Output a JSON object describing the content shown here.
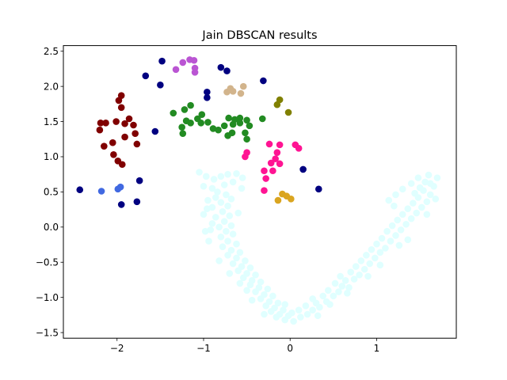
{
  "chart_data": {
    "type": "scatter",
    "title": "Jain DBSCAN results",
    "xlabel": "",
    "ylabel": "",
    "xlim": [
      -2.62,
      1.92
    ],
    "ylim": [
      -1.58,
      2.58
    ],
    "xticks": [
      -2,
      -1,
      0,
      1
    ],
    "yticks": [
      -1.5,
      -1.0,
      -0.5,
      0.0,
      0.5,
      1.0,
      1.5,
      2.0,
      2.5
    ],
    "xtick_labels": [
      "−2",
      "−1",
      "0",
      "1"
    ],
    "ytick_labels": [
      "−1.5",
      "−1.0",
      "−0.5",
      "0.0",
      "0.5",
      "1.0",
      "1.5",
      "2.0",
      "2.5"
    ],
    "grid": false,
    "legend": "none",
    "series": [
      {
        "color": "#e0ffff",
        "points": [
          [
            -1.05,
            0.78
          ],
          [
            -0.97,
            0.72
          ],
          [
            -0.88,
            0.68
          ],
          [
            -0.8,
            0.72
          ],
          [
            -0.72,
            0.75
          ],
          [
            -0.62,
            0.76
          ],
          [
            -0.55,
            0.7
          ],
          [
            -0.66,
            0.64
          ],
          [
            -0.76,
            0.6
          ],
          [
            -0.9,
            0.55
          ],
          [
            -1.0,
            0.58
          ],
          [
            -0.84,
            0.5
          ],
          [
            -0.74,
            0.46
          ],
          [
            -0.86,
            0.42
          ],
          [
            -0.68,
            0.4
          ],
          [
            -0.95,
            0.38
          ],
          [
            -0.8,
            0.35
          ],
          [
            -0.72,
            0.3
          ],
          [
            -0.9,
            0.28
          ],
          [
            -0.78,
            0.22
          ],
          [
            -0.7,
            0.16
          ],
          [
            -0.86,
            0.14
          ],
          [
            -0.76,
            0.08
          ],
          [
            -0.68,
            0.02
          ],
          [
            -0.82,
            0.0
          ],
          [
            -0.92,
            -0.04
          ],
          [
            -0.74,
            -0.06
          ],
          [
            -0.66,
            -0.1
          ],
          [
            -0.8,
            -0.14
          ],
          [
            -0.9,
            0.05
          ],
          [
            -0.72,
            -0.2
          ],
          [
            -0.62,
            -0.24
          ],
          [
            -0.78,
            -0.28
          ],
          [
            -0.68,
            -0.33
          ],
          [
            -0.58,
            -0.36
          ],
          [
            -0.72,
            -0.4
          ],
          [
            -0.62,
            -0.44
          ],
          [
            -0.52,
            -0.48
          ],
          [
            -0.66,
            -0.52
          ],
          [
            -0.56,
            -0.56
          ],
          [
            -0.46,
            -0.58
          ],
          [
            -0.6,
            -0.62
          ],
          [
            -0.5,
            -0.66
          ],
          [
            -0.4,
            -0.68
          ],
          [
            -0.54,
            -0.72
          ],
          [
            -0.44,
            -0.76
          ],
          [
            -0.34,
            -0.78
          ],
          [
            -0.46,
            -0.82
          ],
          [
            -0.36,
            -0.86
          ],
          [
            -0.26,
            -0.88
          ],
          [
            -0.4,
            -0.92
          ],
          [
            -0.3,
            -0.96
          ],
          [
            -0.2,
            -0.98
          ],
          [
            -0.34,
            -1.02
          ],
          [
            -0.24,
            -1.06
          ],
          [
            -0.14,
            -1.08
          ],
          [
            -0.28,
            -1.12
          ],
          [
            -0.18,
            -1.15
          ],
          [
            -0.08,
            -1.18
          ],
          [
            -0.22,
            -1.2
          ],
          [
            -0.12,
            -1.24
          ],
          [
            -0.02,
            -1.26
          ],
          [
            -0.16,
            -1.28
          ],
          [
            -0.06,
            -1.32
          ],
          [
            0.04,
            -1.34
          ],
          [
            0.02,
            -1.22
          ],
          [
            0.12,
            -1.28
          ],
          [
            0.2,
            -1.24
          ],
          [
            0.1,
            -1.18
          ],
          [
            0.26,
            -1.18
          ],
          [
            0.34,
            -1.14
          ],
          [
            0.18,
            -1.12
          ],
          [
            0.3,
            -1.08
          ],
          [
            0.42,
            -1.06
          ],
          [
            0.26,
            -1.02
          ],
          [
            0.38,
            -0.98
          ],
          [
            0.5,
            -0.98
          ],
          [
            0.46,
            -1.1
          ],
          [
            0.56,
            -0.92
          ],
          [
            0.44,
            -0.9
          ],
          [
            0.6,
            -0.84
          ],
          [
            0.52,
            -0.8
          ],
          [
            0.68,
            -0.86
          ],
          [
            0.64,
            -0.76
          ],
          [
            0.74,
            -0.74
          ],
          [
            0.58,
            -0.7
          ],
          [
            0.8,
            -0.68
          ],
          [
            0.7,
            -0.64
          ],
          [
            0.86,
            -0.6
          ],
          [
            0.76,
            -0.56
          ],
          [
            0.92,
            -0.52
          ],
          [
            0.82,
            -0.48
          ],
          [
            0.98,
            -0.44
          ],
          [
            0.88,
            -0.4
          ],
          [
            1.04,
            -0.36
          ],
          [
            0.94,
            -0.32
          ],
          [
            1.1,
            -0.3
          ],
          [
            1.0,
            -0.24
          ],
          [
            1.16,
            -0.2
          ],
          [
            1.06,
            -0.16
          ],
          [
            1.22,
            -0.12
          ],
          [
            1.12,
            -0.06
          ],
          [
            1.28,
            -0.04
          ],
          [
            1.18,
            0.02
          ],
          [
            1.34,
            0.04
          ],
          [
            1.24,
            0.1
          ],
          [
            1.4,
            0.12
          ],
          [
            1.3,
            0.18
          ],
          [
            1.46,
            0.2
          ],
          [
            1.36,
            0.26
          ],
          [
            1.52,
            0.28
          ],
          [
            1.42,
            0.34
          ],
          [
            1.58,
            0.36
          ],
          [
            1.48,
            0.42
          ],
          [
            1.62,
            0.46
          ],
          [
            1.54,
            0.52
          ],
          [
            1.66,
            0.58
          ],
          [
            1.56,
            0.64
          ],
          [
            1.7,
            0.7
          ],
          [
            1.6,
            0.74
          ],
          [
            1.48,
            0.7
          ],
          [
            1.4,
            0.62
          ],
          [
            1.3,
            0.54
          ],
          [
            1.22,
            0.46
          ],
          [
            1.2,
            0.3
          ],
          [
            1.14,
            0.38
          ],
          [
            1.44,
            0.48
          ],
          [
            1.62,
            0.62
          ],
          [
            1.5,
            0.56
          ],
          [
            1.68,
            0.4
          ],
          [
            1.58,
            0.18
          ],
          [
            1.26,
            -0.26
          ],
          [
            1.36,
            -0.18
          ],
          [
            1.04,
            -0.54
          ],
          [
            0.9,
            -0.7
          ],
          [
            0.66,
            -0.94
          ],
          [
            0.32,
            -1.26
          ],
          [
            -0.06,
            -1.1
          ],
          [
            -0.3,
            -1.24
          ],
          [
            -0.44,
            -1.04
          ],
          [
            -0.5,
            -0.9
          ],
          [
            -0.58,
            -0.8
          ],
          [
            -0.7,
            -0.66
          ],
          [
            -0.82,
            -0.48
          ],
          [
            -0.94,
            -0.2
          ],
          [
            -0.98,
            -0.06
          ],
          [
            -1.0,
            0.18
          ],
          [
            -0.96,
            0.26
          ],
          [
            -0.6,
            0.2
          ],
          [
            -0.56,
            0.55
          ]
        ]
      },
      {
        "color": "#000080",
        "points": [
          [
            -2.43,
            0.53
          ],
          [
            -1.95,
            0.32
          ],
          [
            -1.77,
            0.36
          ],
          [
            -1.74,
            0.66
          ],
          [
            -1.67,
            2.15
          ],
          [
            -1.48,
            2.36
          ],
          [
            -1.5,
            2.02
          ],
          [
            -1.56,
            1.36
          ],
          [
            -0.96,
            1.92
          ],
          [
            -0.96,
            1.84
          ],
          [
            -0.8,
            2.27
          ],
          [
            -0.73,
            2.22
          ],
          [
            -0.31,
            2.08
          ],
          [
            0.15,
            0.82
          ],
          [
            0.33,
            0.54
          ]
        ]
      },
      {
        "color": "#800000",
        "points": [
          [
            -2.19,
            1.48
          ],
          [
            -2.13,
            1.48
          ],
          [
            -2.2,
            1.38
          ],
          [
            -2.15,
            1.15
          ],
          [
            -1.98,
            1.8
          ],
          [
            -1.95,
            1.87
          ],
          [
            -1.95,
            1.7
          ],
          [
            -1.91,
            1.47
          ],
          [
            -1.86,
            1.54
          ],
          [
            -1.81,
            1.45
          ],
          [
            -1.79,
            1.33
          ],
          [
            -1.77,
            1.18
          ],
          [
            -1.91,
            1.28
          ],
          [
            -2.05,
            1.2
          ],
          [
            -2.04,
            1.03
          ],
          [
            -1.99,
            0.94
          ],
          [
            -1.94,
            0.89
          ],
          [
            -2.01,
            1.5
          ]
        ]
      },
      {
        "color": "#4169e1",
        "points": [
          [
            -2.18,
            0.51
          ],
          [
            -1.99,
            0.54
          ],
          [
            -1.96,
            0.57
          ]
        ]
      },
      {
        "color": "#ba55d3",
        "points": [
          [
            -1.32,
            2.24
          ],
          [
            -1.24,
            2.34
          ],
          [
            -1.16,
            2.38
          ],
          [
            -1.11,
            2.37
          ],
          [
            -1.1,
            2.26
          ],
          [
            -1.1,
            2.2
          ]
        ]
      },
      {
        "color": "#228b22",
        "points": [
          [
            -1.35,
            1.62
          ],
          [
            -1.22,
            1.67
          ],
          [
            -1.15,
            1.73
          ],
          [
            -1.2,
            1.51
          ],
          [
            -1.25,
            1.42
          ],
          [
            -1.24,
            1.33
          ],
          [
            -1.15,
            1.48
          ],
          [
            -1.07,
            1.54
          ],
          [
            -1.02,
            1.6
          ],
          [
            -1.03,
            1.48
          ],
          [
            -0.95,
            1.49
          ],
          [
            -0.89,
            1.4
          ],
          [
            -0.83,
            1.38
          ],
          [
            -0.76,
            1.44
          ],
          [
            -0.72,
            1.3
          ],
          [
            -0.67,
            1.34
          ],
          [
            -0.66,
            1.46
          ],
          [
            -0.71,
            1.55
          ],
          [
            -0.64,
            1.53
          ],
          [
            -0.58,
            1.55
          ],
          [
            -0.58,
            1.48
          ],
          [
            -0.5,
            1.52
          ],
          [
            -0.47,
            1.44
          ],
          [
            -0.52,
            1.34
          ],
          [
            -0.5,
            1.25
          ],
          [
            -0.32,
            1.54
          ]
        ]
      },
      {
        "color": "#d2b48c",
        "points": [
          [
            -0.73,
            1.92
          ],
          [
            -0.69,
            1.97
          ],
          [
            -0.66,
            1.93
          ],
          [
            -0.57,
            1.9
          ],
          [
            -0.54,
            2.0
          ]
        ]
      },
      {
        "color": "#808000",
        "points": [
          [
            -0.12,
            1.81
          ],
          [
            -0.15,
            1.74
          ],
          [
            -0.02,
            1.63
          ]
        ]
      },
      {
        "color": "#ff1493",
        "points": [
          [
            -0.5,
            1.06
          ],
          [
            -0.52,
            1.0
          ],
          [
            -0.24,
            1.18
          ],
          [
            -0.12,
            1.17
          ],
          [
            -0.15,
            1.06
          ],
          [
            -0.17,
            0.97
          ],
          [
            -0.22,
            0.91
          ],
          [
            -0.12,
            0.9
          ],
          [
            -0.2,
            0.8
          ],
          [
            -0.3,
            0.8
          ],
          [
            -0.28,
            0.69
          ],
          [
            -0.3,
            0.52
          ],
          [
            0.06,
            1.17
          ],
          [
            0.1,
            1.12
          ]
        ]
      },
      {
        "color": "#daa520",
        "points": [
          [
            -0.09,
            0.47
          ],
          [
            -0.04,
            0.44
          ],
          [
            0.01,
            0.4
          ],
          [
            -0.14,
            0.38
          ]
        ]
      }
    ]
  }
}
